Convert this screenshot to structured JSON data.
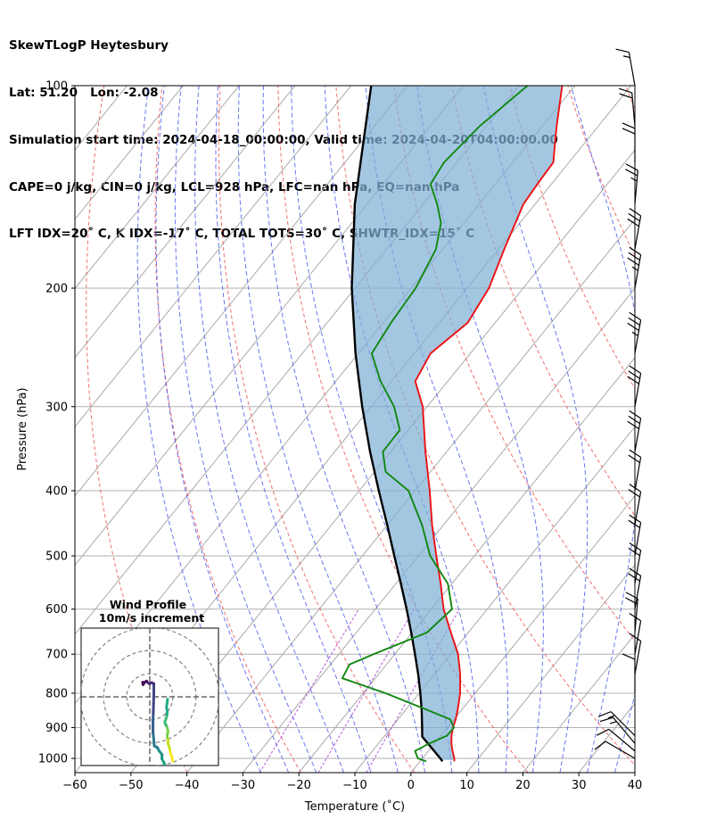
{
  "header": {
    "line1": "SkewTLogP Heytesbury",
    "line2": "Lat: 51.20   Lon: -2.08",
    "line3": "Simulation start time: 2024-04-18_00:00:00, Valid time: 2024-04-20T04:00:00.00",
    "line4": "CAPE=0 j/kg, CIN=0 j/kg, LCL=928 hPa, LFC=nan hPa, EQ=nan hPa",
    "line5": "LFT IDX=20˚ C, K IDX=-17˚ C, TOTAL TOTS=30˚ C, SHWTR_IDX=15˚ C"
  },
  "chart_data": [
    {
      "type": "line",
      "title": "SkewTLogP Heytesbury",
      "xlabel": "Temperature (˚C)",
      "ylabel": "Pressure (hPa)",
      "xlim": [
        -60,
        40
      ],
      "ylim": [
        1050,
        100
      ],
      "y_scale": "log",
      "x_ticks": [
        "−60",
        "−50",
        "−40",
        "−30",
        "−20",
        "−10",
        "0",
        "10",
        "20",
        "30",
        "40"
      ],
      "x_tick_values": [
        -60,
        -50,
        -40,
        -30,
        -20,
        -10,
        0,
        10,
        20,
        30,
        40
      ],
      "y_ticks": [
        "100",
        "200",
        "300",
        "400",
        "500",
        "600",
        "700",
        "800",
        "900",
        "1000"
      ],
      "y_tick_values": [
        100,
        200,
        300,
        400,
        500,
        600,
        700,
        800,
        900,
        1000
      ],
      "grid": true,
      "skew": 35,
      "colors": {
        "temperature": "#ee1111",
        "dewpoint": "#118811",
        "parcel": "#000000",
        "shade": "#7fb0d6",
        "isotherm": "#aaaaaa",
        "dry_adiabat": "#ee5555",
        "moist_adiabat": "#4455ee",
        "mixing_ratio": "#aa44cc"
      },
      "series": [
        {
          "role": "temperature",
          "points": [
            {
              "p": 1010,
              "t": 6.1
            },
            {
              "p": 1000,
              "t": 5.7
            },
            {
              "p": 975,
              "t": 4.3
            },
            {
              "p": 950,
              "t": 3.0
            },
            {
              "p": 925,
              "t": 1.9
            },
            {
              "p": 900,
              "t": 1.0
            },
            {
              "p": 875,
              "t": 0.3
            },
            {
              "p": 850,
              "t": -0.6
            },
            {
              "p": 800,
              "t": -2.7
            },
            {
              "p": 750,
              "t": -5.4
            },
            {
              "p": 700,
              "t": -8.7
            },
            {
              "p": 650,
              "t": -13.1
            },
            {
              "p": 600,
              "t": -17.8
            },
            {
              "p": 550,
              "t": -22.0
            },
            {
              "p": 500,
              "t": -26.8
            },
            {
              "p": 450,
              "t": -32.0
            },
            {
              "p": 400,
              "t": -37.4
            },
            {
              "p": 350,
              "t": -43.8
            },
            {
              "p": 300,
              "t": -50.8
            },
            {
              "p": 275,
              "t": -55.8
            },
            {
              "p": 250,
              "t": -57.1
            },
            {
              "p": 225,
              "t": -54.9
            },
            {
              "p": 200,
              "t": -56.1
            },
            {
              "p": 175,
              "t": -59.0
            },
            {
              "p": 150,
              "t": -62.1
            },
            {
              "p": 140,
              "t": -62.5
            },
            {
              "p": 130,
              "t": -62.8
            },
            {
              "p": 115,
              "t": -67.4
            },
            {
              "p": 100,
              "t": -72.3
            }
          ]
        },
        {
          "role": "dewpoint",
          "points": [
            {
              "p": 1010,
              "t": 1.1
            },
            {
              "p": 1000,
              "t": -0.8
            },
            {
              "p": 975,
              "t": -2.4
            },
            {
              "p": 950,
              "t": -0.9
            },
            {
              "p": 925,
              "t": 1.1
            },
            {
              "p": 900,
              "t": 1.2
            },
            {
              "p": 875,
              "t": -0.7
            },
            {
              "p": 850,
              "t": -5.6
            },
            {
              "p": 800,
              "t": -16.0
            },
            {
              "p": 760,
              "t": -25.9
            },
            {
              "p": 725,
              "t": -26.6
            },
            {
              "p": 700,
              "t": -23.8
            },
            {
              "p": 650,
              "t": -17.4
            },
            {
              "p": 600,
              "t": -16.3
            },
            {
              "p": 550,
              "t": -20.7
            },
            {
              "p": 500,
              "t": -27.9
            },
            {
              "p": 450,
              "t": -33.8
            },
            {
              "p": 400,
              "t": -41.2
            },
            {
              "p": 375,
              "t": -48.0
            },
            {
              "p": 350,
              "t": -51.4
            },
            {
              "p": 325,
              "t": -51.5
            },
            {
              "p": 300,
              "t": -55.9
            },
            {
              "p": 275,
              "t": -62.0
            },
            {
              "p": 250,
              "t": -67.6
            },
            {
              "p": 225,
              "t": -68.6
            },
            {
              "p": 200,
              "t": -69.2
            },
            {
              "p": 175,
              "t": -71.2
            },
            {
              "p": 160,
              "t": -74.1
            },
            {
              "p": 150,
              "t": -77.5
            },
            {
              "p": 140,
              "t": -81.6
            },
            {
              "p": 130,
              "t": -82.3
            },
            {
              "p": 115,
              "t": -81.2
            },
            {
              "p": 100,
              "t": -78.5
            }
          ]
        },
        {
          "role": "parcel",
          "points": [
            {
              "p": 1010,
              "t": 4.0
            },
            {
              "p": 1000,
              "t": 3.2
            },
            {
              "p": 950,
              "t": -1.2
            },
            {
              "p": 928,
              "t": -3.2
            },
            {
              "p": 900,
              "t": -4.5
            },
            {
              "p": 850,
              "t": -7.0
            },
            {
              "p": 800,
              "t": -9.8
            },
            {
              "p": 750,
              "t": -12.9
            },
            {
              "p": 700,
              "t": -16.4
            },
            {
              "p": 650,
              "t": -20.2
            },
            {
              "p": 600,
              "t": -24.4
            },
            {
              "p": 550,
              "t": -29.1
            },
            {
              "p": 500,
              "t": -34.3
            },
            {
              "p": 450,
              "t": -40.0
            },
            {
              "p": 400,
              "t": -46.5
            },
            {
              "p": 350,
              "t": -53.7
            },
            {
              "p": 300,
              "t": -61.6
            },
            {
              "p": 250,
              "t": -70.5
            },
            {
              "p": 200,
              "t": -80.6
            },
            {
              "p": 150,
              "t": -92.2
            },
            {
              "p": 100,
              "t": -106.4
            }
          ]
        }
      ],
      "wind_barbs": [
        {
          "p": 1000,
          "speed_kt": 10,
          "dir_deg": 300
        },
        {
          "p": 975,
          "speed_kt": 10,
          "dir_deg": 310
        },
        {
          "p": 950,
          "speed_kt": 15,
          "dir_deg": 320
        },
        {
          "p": 925,
          "speed_kt": 15,
          "dir_deg": 315
        },
        {
          "p": 800,
          "speed_kt": 10,
          "dir_deg": 0
        },
        {
          "p": 750,
          "speed_kt": 10,
          "dir_deg": 10
        },
        {
          "p": 700,
          "speed_kt": 10,
          "dir_deg": 10
        },
        {
          "p": 650,
          "speed_kt": 20,
          "dir_deg": 5
        },
        {
          "p": 600,
          "speed_kt": 20,
          "dir_deg": 10
        },
        {
          "p": 550,
          "speed_kt": 20,
          "dir_deg": 10
        },
        {
          "p": 500,
          "speed_kt": 20,
          "dir_deg": 10
        },
        {
          "p": 450,
          "speed_kt": 20,
          "dir_deg": 10
        },
        {
          "p": 400,
          "speed_kt": 20,
          "dir_deg": 10
        },
        {
          "p": 350,
          "speed_kt": 30,
          "dir_deg": 10
        },
        {
          "p": 300,
          "speed_kt": 30,
          "dir_deg": 10
        },
        {
          "p": 250,
          "speed_kt": 35,
          "dir_deg": 10
        },
        {
          "p": 200,
          "speed_kt": 35,
          "dir_deg": 10
        },
        {
          "p": 175,
          "speed_kt": 30,
          "dir_deg": 10
        },
        {
          "p": 150,
          "speed_kt": 25,
          "dir_deg": 5
        },
        {
          "p": 130,
          "speed_kt": 20,
          "dir_deg": 0
        },
        {
          "p": 115,
          "speed_kt": 20,
          "dir_deg": 355
        },
        {
          "p": 100,
          "speed_kt": 15,
          "dir_deg": 350
        }
      ]
    },
    {
      "type": "scatter",
      "title": "Wind Profile",
      "subtitle": "10m/s increment",
      "rings": [
        10,
        20,
        30
      ],
      "colormap": [
        "#fde725",
        "#7ad151",
        "#22a884",
        "#2a788e",
        "#414487",
        "#440154"
      ],
      "points_uv": [
        [
          5.5,
          -11.5
        ],
        [
          5.0,
          -10.5
        ],
        [
          4.5,
          -9.5
        ],
        [
          3.8,
          -8.5
        ],
        [
          3.6,
          -7.5
        ],
        [
          3.0,
          -6.5
        ],
        [
          2.5,
          -5.6
        ],
        [
          2.5,
          -4.5
        ],
        [
          2.0,
          -3.5
        ],
        [
          2.0,
          -2.5
        ],
        [
          2.5,
          -1.5
        ],
        [
          2.0,
          -0.3
        ],
        [
          1.5,
          0.5
        ],
        [
          0.8,
          1.0
        ],
        [
          0.5,
          1.8
        ],
        [
          1.3,
          3.0
        ],
        [
          1.8,
          4.2
        ],
        [
          2.0,
          5.5
        ],
        [
          1.5,
          6.8
        ],
        [
          1.8,
          8.0
        ],
        [
          2.2,
          9.5
        ]
      ],
      "points_uv_lower": [
        [
          3.5,
          -10.5
        ],
        [
          3.3,
          -9.5
        ],
        [
          3.0,
          -8.6
        ],
        [
          3.5,
          -7.8
        ],
        [
          2.5,
          -6.8
        ],
        [
          2.6,
          -6.0
        ],
        [
          1.5,
          -5.2
        ],
        [
          0.8,
          -4.5
        ],
        [
          -0.3,
          -4.2
        ],
        [
          -0.5,
          -3.0
        ],
        [
          -0.8,
          -1.5
        ],
        [
          -0.8,
          -0.5
        ],
        [
          -0.8,
          1.0
        ],
        [
          -0.7,
          2.5
        ],
        [
          -0.6,
          4.5
        ],
        [
          -0.5,
          6.5
        ],
        [
          -0.5,
          8.5
        ],
        [
          -1.3,
          8.7
        ],
        [
          -2.3,
          8.5
        ],
        [
          -3.2,
          9.0
        ],
        [
          -3.9,
          8.8
        ],
        [
          -4.5,
          8.3
        ],
        [
          -4.7,
          8.8
        ]
      ]
    }
  ]
}
